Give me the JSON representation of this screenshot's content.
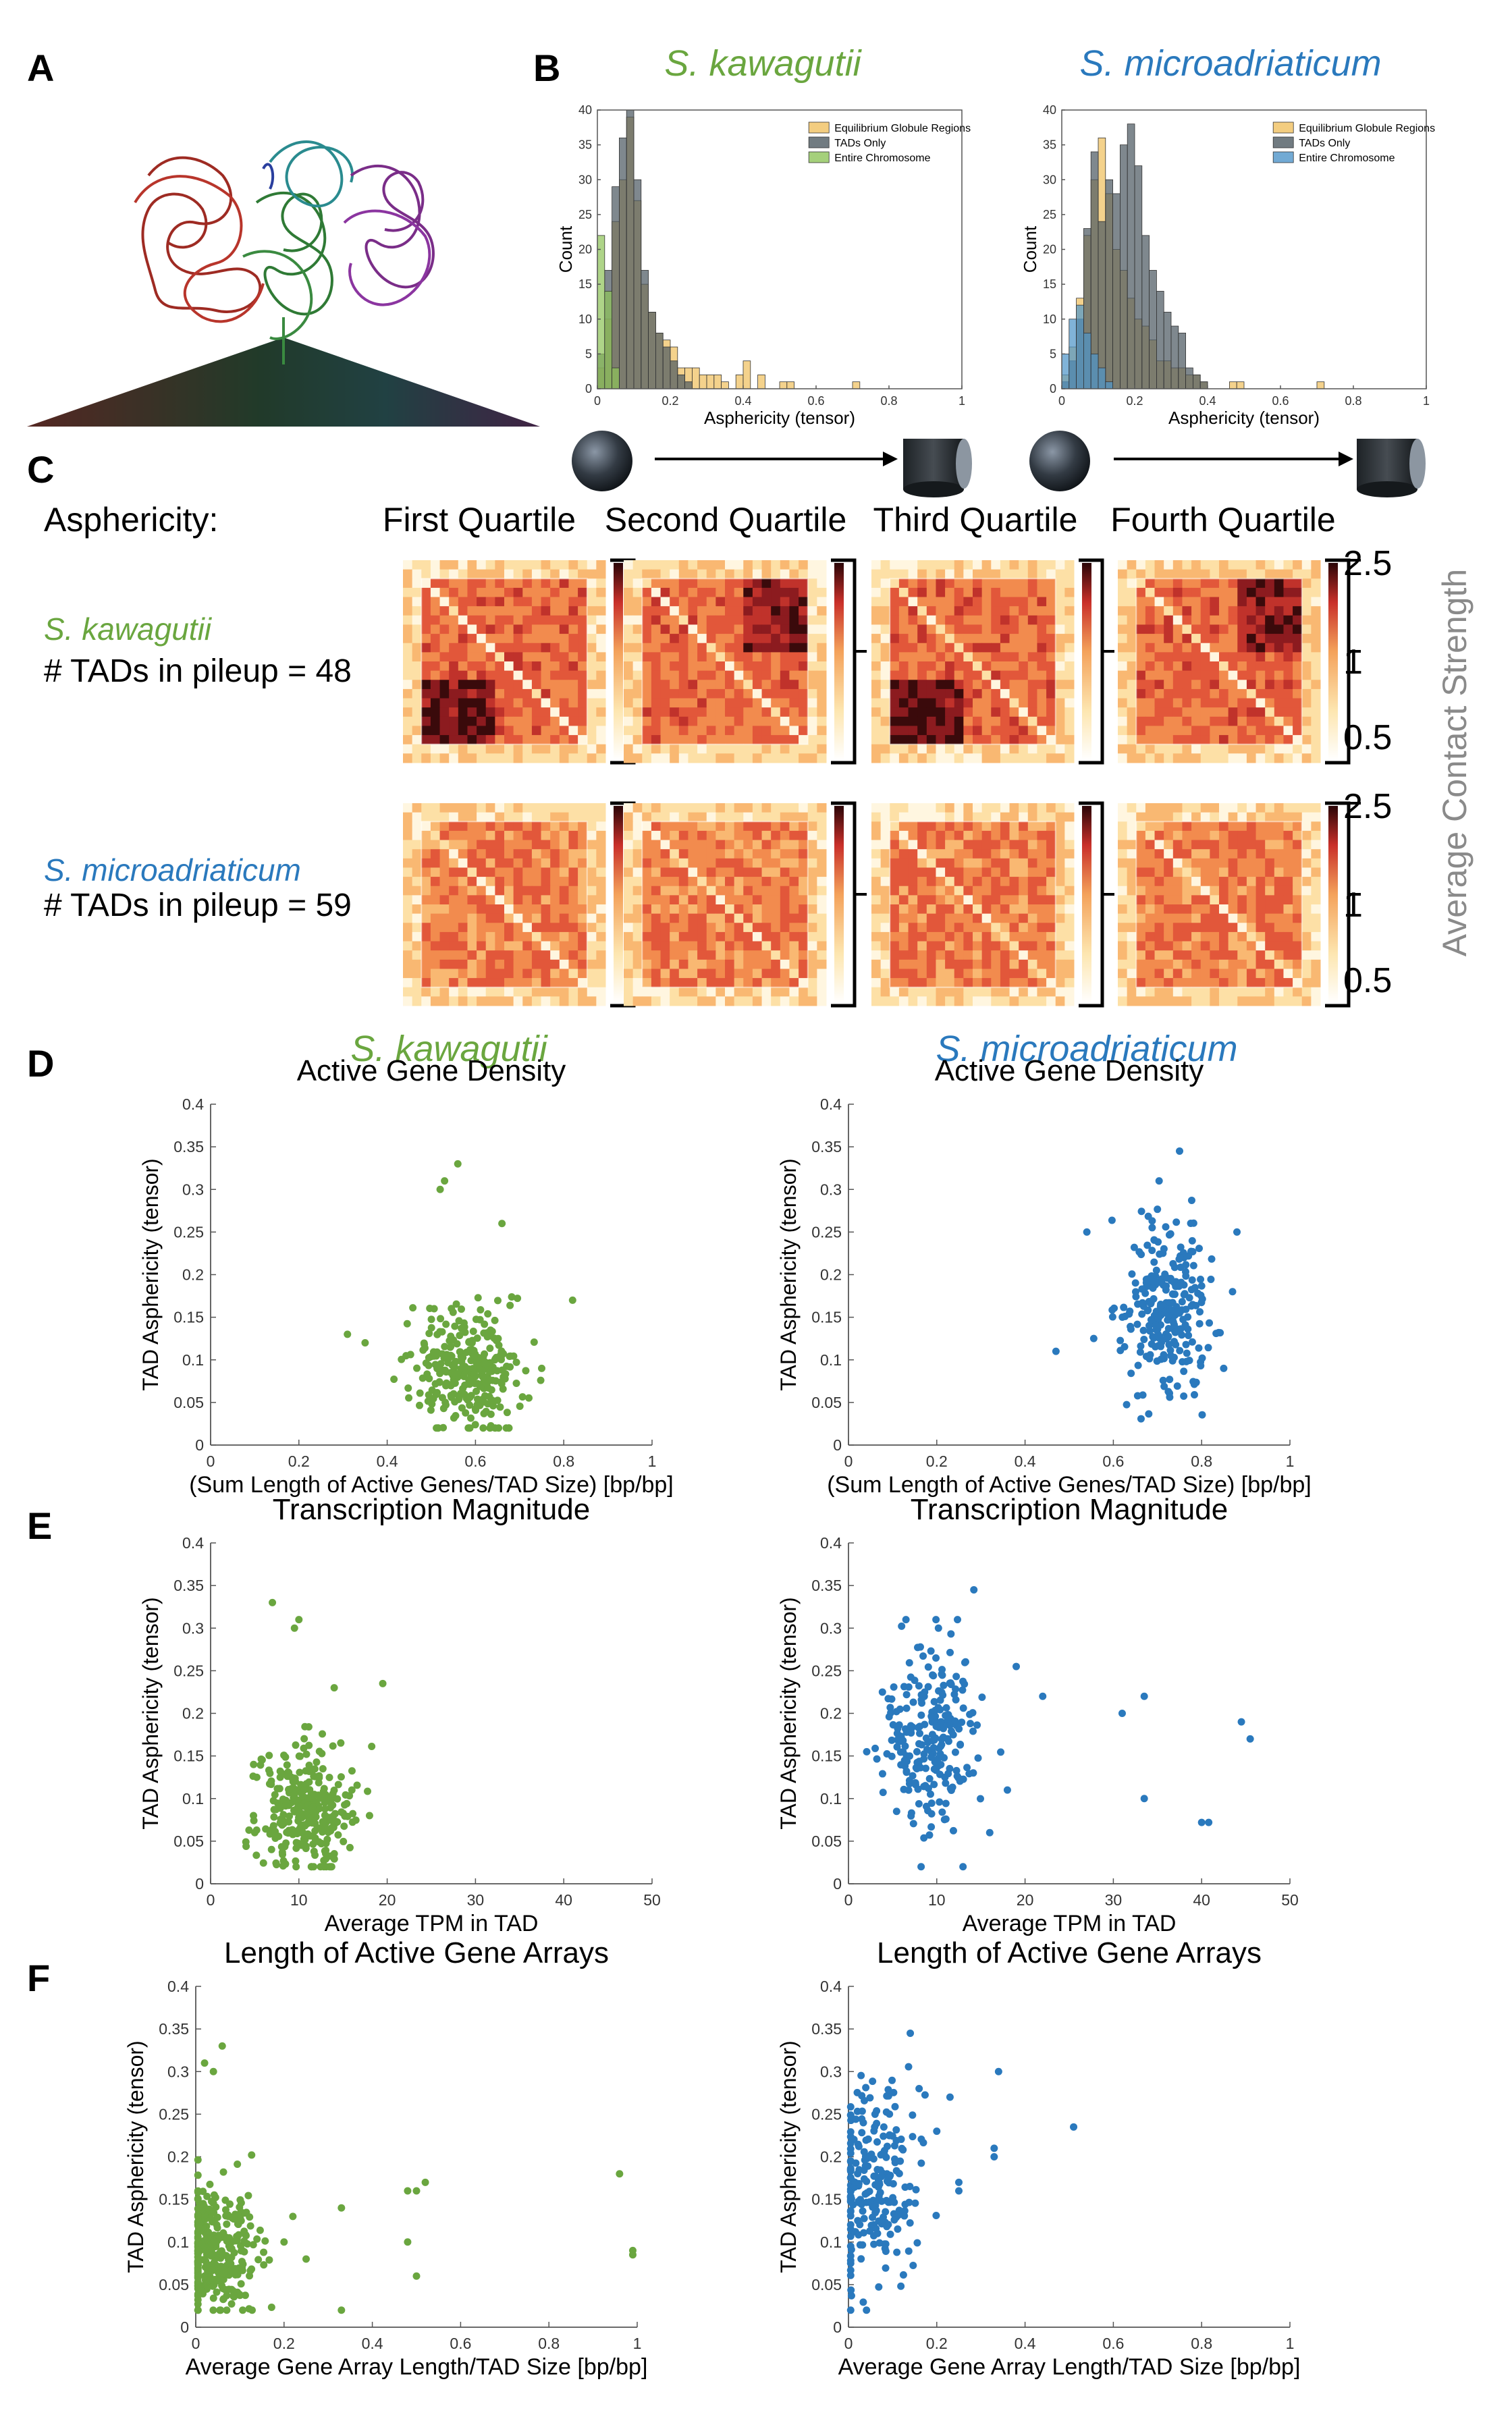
{
  "colors": {
    "green": "#6aa63f",
    "blue": "#2a79bd",
    "gold": "#f0c060",
    "darkgray": "#4d5a62",
    "lightgreen": "#8fc45a",
    "lightblue": "#4f95c9",
    "axis": "#555555"
  },
  "panel_letters": {
    "a": "A",
    "b": "B",
    "c": "C",
    "d": "D",
    "e": "E",
    "f": "F"
  },
  "species": {
    "sk": "S. kawagutii",
    "sm": "S. microadriaticum"
  },
  "panelB": {
    "xlabel": "Asphericity (tensor)",
    "ylabel": "Count",
    "legend_sk": [
      "Equilibrium Globule Regions",
      "TADs Only",
      "Entire Chromosome"
    ],
    "legend_sm": [
      "Equilibrium Globule Regions",
      "TADs Only",
      "Entire Chromosome"
    ],
    "yticks": [
      "0",
      "5",
      "10",
      "15",
      "20",
      "25",
      "30",
      "35",
      "40"
    ],
    "xticks": [
      "0",
      "0.2",
      "0.4",
      "0.6",
      "0.8",
      "1"
    ]
  },
  "panelC": {
    "row_header": "Asphericity:",
    "quartiles": [
      "First Quartile",
      "Second Quartile",
      "Third Quartile",
      "Fourth Quartile"
    ],
    "sk_count": "# TADs in pileup = 48",
    "sm_count": "# TADs in pileup = 59",
    "colorbar_ticks": [
      "2.5",
      "1",
      "0.5"
    ],
    "colorbar_label": "Average Contact Strength"
  },
  "panelD": {
    "title": "Active Gene Density",
    "xlabel": "(Sum Length of Active Genes/TAD Size) [bp/bp]",
    "ylabel": "TAD Asphericity (tensor)",
    "xticks": [
      "0",
      "0.2",
      "0.4",
      "0.6",
      "0.8",
      "1"
    ]
  },
  "panelE": {
    "title": "Transcription Magnitude",
    "xlabel": "Average TPM in TAD",
    "ylabel": "TAD Asphericity (tensor)",
    "xticks": [
      "0",
      "10",
      "20",
      "30",
      "40",
      "50"
    ]
  },
  "panelF": {
    "title": "Length of Active Gene Arrays",
    "xlabel": "Average Gene Array Length/TAD Size [bp/bp]",
    "ylabel": "TAD Asphericity (tensor)",
    "xticks": [
      "0",
      "0.2",
      "0.4",
      "0.6",
      "0.8",
      "1"
    ]
  },
  "yticks_scatter": [
    "0",
    "0.05",
    "0.1",
    "0.15",
    "0.2",
    "0.25",
    "0.3",
    "0.35",
    "0.4"
  ],
  "chart_data": [
    {
      "id": "B-sk",
      "type": "bar",
      "title": "S. kawagutii",
      "xlabel": "Asphericity (tensor)",
      "ylabel": "Count",
      "xlim": [
        0,
        1
      ],
      "ylim": [
        0,
        40
      ],
      "bin_width": 0.02,
      "series": [
        {
          "name": "Equilibrium Globule Regions",
          "bin_starts": [
            0.0,
            0.02,
            0.04,
            0.06,
            0.08,
            0.1,
            0.12,
            0.14,
            0.16,
            0.18,
            0.2,
            0.22,
            0.24,
            0.26,
            0.28,
            0.3,
            0.32,
            0.34,
            0.36,
            0.38,
            0.4,
            0.44,
            0.46,
            0.48,
            0.5,
            0.52,
            0.54,
            0.56,
            0.58,
            0.6,
            0.62,
            0.64,
            0.66,
            0.68,
            0.7
          ],
          "values": [
            3,
            10,
            24,
            30,
            39,
            27,
            15,
            11,
            8,
            7,
            6,
            3,
            3,
            3,
            2,
            2,
            2,
            1,
            0,
            2,
            4,
            2,
            0,
            0,
            1,
            1,
            0,
            0,
            0,
            0,
            0,
            0,
            0,
            0,
            1
          ]
        },
        {
          "name": "TADs Only",
          "bin_starts": [
            0.0,
            0.02,
            0.04,
            0.06,
            0.08,
            0.1,
            0.12,
            0.14,
            0.16,
            0.18,
            0.2,
            0.22,
            0.24,
            0.26
          ],
          "values": [
            5,
            17,
            29,
            36,
            40,
            30,
            17,
            11,
            8,
            6,
            4,
            2,
            1,
            0
          ]
        },
        {
          "name": "Entire Chromosome",
          "bin_starts": [
            0.0,
            0.02,
            0.04
          ],
          "values": [
            22,
            14,
            3
          ]
        }
      ]
    },
    {
      "id": "B-sm",
      "type": "bar",
      "title": "S. microadriaticum",
      "xlabel": "Asphericity (tensor)",
      "ylabel": "Count",
      "xlim": [
        0,
        1
      ],
      "ylim": [
        0,
        40
      ],
      "bin_width": 0.02,
      "series": [
        {
          "name": "Equilibrium Globule Regions",
          "bin_starts": [
            0.0,
            0.02,
            0.04,
            0.06,
            0.08,
            0.1,
            0.12,
            0.14,
            0.16,
            0.18,
            0.2,
            0.22,
            0.24,
            0.26,
            0.28,
            0.3,
            0.32,
            0.34,
            0.36,
            0.38,
            0.4,
            0.42,
            0.44,
            0.46,
            0.48,
            0.5,
            0.68,
            0.7
          ],
          "values": [
            2,
            6,
            13,
            22,
            30,
            36,
            28,
            20,
            17,
            13,
            10,
            9,
            7,
            4,
            4,
            3,
            3,
            2,
            2,
            1,
            0,
            0,
            0,
            1,
            1,
            0,
            0,
            1
          ]
        },
        {
          "name": "TADs Only",
          "bin_starts": [
            0.0,
            0.02,
            0.04,
            0.06,
            0.08,
            0.1,
            0.12,
            0.14,
            0.16,
            0.18,
            0.2,
            0.22,
            0.24,
            0.26,
            0.28,
            0.3,
            0.32,
            0.34,
            0.36,
            0.38
          ],
          "values": [
            1,
            4,
            10,
            23,
            34,
            24,
            30,
            28,
            35,
            38,
            32,
            22,
            17,
            14,
            11,
            9,
            8,
            3,
            2,
            1
          ]
        },
        {
          "name": "Entire Chromosome",
          "bin_starts": [
            0.0,
            0.02,
            0.04,
            0.06,
            0.08,
            0.1,
            0.12
          ],
          "values": [
            5,
            10,
            12,
            8,
            5,
            3,
            1
          ]
        }
      ]
    },
    {
      "id": "D-sk",
      "type": "scatter",
      "title": "Active Gene Density",
      "xlabel": "(Sum Length of Active Genes/TAD Size) [bp/bp]",
      "ylabel": "TAD Asphericity (tensor)",
      "xlim": [
        0,
        1
      ],
      "ylim": [
        0,
        0.4
      ],
      "color": "#6aa63f",
      "n_points": 300,
      "center_x": 0.58,
      "spread_x": 0.06,
      "center_y": 0.09,
      "spread_y": 0.04,
      "outliers": [
        [
          0.56,
          0.33
        ],
        [
          0.52,
          0.3
        ],
        [
          0.53,
          0.31
        ],
        [
          0.66,
          0.26
        ],
        [
          0.82,
          0.17
        ],
        [
          0.75,
          0.09
        ],
        [
          0.31,
          0.13
        ],
        [
          0.35,
          0.12
        ]
      ]
    },
    {
      "id": "D-sm",
      "type": "scatter",
      "title": "Active Gene Density",
      "xlabel": "(Sum Length of Active Genes/TAD Size) [bp/bp]",
      "ylabel": "TAD Asphericity (tensor)",
      "xlim": [
        0,
        1
      ],
      "ylim": [
        0,
        0.4
      ],
      "color": "#2a79bd",
      "n_points": 260,
      "center_x": 0.72,
      "spread_x": 0.05,
      "center_y": 0.16,
      "spread_y": 0.06,
      "outliers": [
        [
          0.75,
          0.345
        ],
        [
          0.47,
          0.11
        ],
        [
          0.54,
          0.25
        ],
        [
          0.88,
          0.25
        ],
        [
          0.85,
          0.09
        ],
        [
          0.87,
          0.18
        ]
      ]
    },
    {
      "id": "E-sk",
      "type": "scatter",
      "title": "Transcription Magnitude",
      "xlabel": "Average TPM in TAD",
      "ylabel": "TAD Asphericity (tensor)",
      "xlim": [
        0,
        50
      ],
      "ylim": [
        0,
        0.4
      ],
      "color": "#6aa63f",
      "n_points": 300,
      "center_x": 10.5,
      "spread_x": 2.6,
      "center_y": 0.09,
      "spread_y": 0.04,
      "outliers": [
        [
          7,
          0.33
        ],
        [
          9.5,
          0.3
        ],
        [
          10,
          0.31
        ],
        [
          19.5,
          0.235
        ],
        [
          16,
          0.11
        ],
        [
          18,
          0.08
        ],
        [
          5,
          0.06
        ],
        [
          14,
          0.23
        ]
      ]
    },
    {
      "id": "E-sm",
      "type": "scatter",
      "title": "Transcription Magnitude",
      "xlabel": "Average TPM in TAD",
      "ylabel": "TAD Asphericity (tensor)",
      "xlim": [
        0,
        50
      ],
      "ylim": [
        0,
        0.4
      ],
      "color": "#2a79bd",
      "n_points": 230,
      "center_x": 9,
      "spread_x": 3,
      "center_y": 0.17,
      "spread_y": 0.06,
      "outliers": [
        [
          14.2,
          0.345
        ],
        [
          19,
          0.255
        ],
        [
          22,
          0.22
        ],
        [
          31,
          0.2
        ],
        [
          33.5,
          0.22
        ],
        [
          33.5,
          0.1
        ],
        [
          40,
          0.072
        ],
        [
          40.8,
          0.072
        ],
        [
          44.5,
          0.19
        ],
        [
          45.5,
          0.17
        ],
        [
          18,
          0.11
        ],
        [
          16,
          0.06
        ]
      ]
    },
    {
      "id": "F-sk",
      "type": "scatter",
      "title": "Length of Active Gene Arrays",
      "xlabel": "Average Gene Array Length/TAD Size [bp/bp]",
      "ylabel": "TAD Asphericity (tensor)",
      "xlim": [
        0,
        1
      ],
      "ylim": [
        0,
        0.4
      ],
      "color": "#6aa63f",
      "n_points": 300,
      "center_x": 0.05,
      "spread_x": 0.05,
      "center_y": 0.09,
      "spread_y": 0.04,
      "outliers": [
        [
          0.02,
          0.31
        ],
        [
          0.04,
          0.3
        ],
        [
          0.06,
          0.33
        ],
        [
          0.33,
          0.02
        ],
        [
          0.33,
          0.14
        ],
        [
          0.5,
          0.06
        ],
        [
          0.5,
          0.16
        ],
        [
          0.52,
          0.17
        ],
        [
          0.48,
          0.1
        ],
        [
          0.48,
          0.16
        ],
        [
          0.96,
          0.18
        ],
        [
          0.99,
          0.09
        ],
        [
          0.99,
          0.085
        ],
        [
          0.25,
          0.08
        ],
        [
          0.2,
          0.1
        ],
        [
          0.22,
          0.13
        ]
      ]
    },
    {
      "id": "F-sm",
      "type": "scatter",
      "title": "Length of Active Gene Arrays",
      "xlabel": "Average Gene Array Length/TAD Size [bp/bp]",
      "ylabel": "TAD Asphericity (tensor)",
      "xlim": [
        0,
        1
      ],
      "ylim": [
        0,
        0.4
      ],
      "color": "#2a79bd",
      "n_points": 230,
      "center_x": 0.05,
      "spread_x": 0.05,
      "center_y": 0.17,
      "spread_y": 0.06,
      "outliers": [
        [
          0.14,
          0.345
        ],
        [
          0.34,
          0.3
        ],
        [
          0.33,
          0.2
        ],
        [
          0.33,
          0.21
        ],
        [
          0.51,
          0.235
        ],
        [
          0.25,
          0.16
        ],
        [
          0.25,
          0.17
        ],
        [
          0.2,
          0.23
        ],
        [
          0.23,
          0.27
        ],
        [
          0.16,
          0.28
        ]
      ]
    }
  ]
}
